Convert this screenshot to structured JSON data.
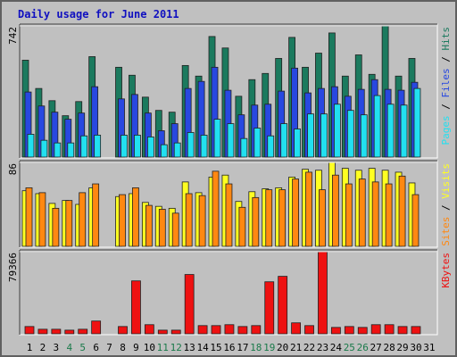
{
  "chart_data": [
    {
      "type": "bar",
      "title": "Daily usage for June 2011",
      "legend_separator": " / ",
      "ylim": [
        0,
        742
      ],
      "yticks": [
        742
      ],
      "series": [
        {
          "name": "Hits",
          "color": "#1b7a5e",
          "values": [
            548,
            388,
            319,
            234,
            314,
            568,
            0,
            508,
            463,
            339,
            264,
            254,
            518,
            458,
            682,
            617,
            344,
            438,
            473,
            558,
            677,
            508,
            588,
            702,
            458,
            578,
            468,
            742,
            458,
            558,
            0
          ]
        },
        {
          "name": "Files",
          "color": "#2848e0",
          "values": [
            368,
            289,
            254,
            214,
            249,
            398,
            0,
            329,
            354,
            249,
            149,
            189,
            388,
            428,
            508,
            378,
            239,
            294,
            299,
            373,
            503,
            363,
            388,
            398,
            344,
            383,
            438,
            383,
            378,
            423,
            0
          ]
        },
        {
          "name": "Pages",
          "color": "#22e0f0",
          "values": [
            129,
            95,
            80,
            80,
            120,
            124,
            0,
            124,
            124,
            114,
            70,
            80,
            139,
            124,
            214,
            189,
            105,
            164,
            120,
            189,
            159,
            244,
            244,
            299,
            264,
            239,
            348,
            299,
            294,
            388,
            0
          ]
        }
      ]
    },
    {
      "type": "bar",
      "ylim": [
        0,
        86
      ],
      "yticks": [
        86
      ],
      "series": [
        {
          "name": "Visits",
          "color": "#ffff22",
          "values": [
            57,
            54,
            44,
            47,
            43,
            60,
            0,
            51,
            54,
            45,
            41,
            39,
            66,
            55,
            71,
            73,
            46,
            56,
            59,
            60,
            71,
            79,
            78,
            86,
            80,
            78,
            80,
            78,
            76,
            65,
            0
          ]
        },
        {
          "name": "Sites",
          "color": "#ff8811",
          "values": [
            60,
            55,
            39,
            47,
            55,
            64,
            0,
            53,
            60,
            42,
            38,
            34,
            54,
            52,
            77,
            64,
            40,
            50,
            58,
            58,
            69,
            76,
            58,
            73,
            64,
            69,
            66,
            64,
            72,
            53,
            0
          ]
        }
      ]
    },
    {
      "type": "bar",
      "ylim": [
        0,
        79366
      ],
      "yticks": [
        79366
      ],
      "categories": [
        "1",
        "2",
        "3",
        "4",
        "5",
        "6",
        "7",
        "8",
        "9",
        "10",
        "11",
        "12",
        "13",
        "14",
        "15",
        "16",
        "17",
        "18",
        "19",
        "20",
        "21",
        "22",
        "23",
        "24",
        "25",
        "26",
        "27",
        "28",
        "29",
        "30",
        "31"
      ],
      "category_colors": [
        "#000000",
        "#000000",
        "#000000",
        "#1a7a4a",
        "#1a7a4a",
        "#000000",
        "#000000",
        "#000000",
        "#000000",
        "#000000",
        "#1a7a4a",
        "#1a7a4a",
        "#000000",
        "#000000",
        "#000000",
        "#000000",
        "#000000",
        "#1a7a4a",
        "#1a7a4a",
        "#000000",
        "#000000",
        "#000000",
        "#000000",
        "#000000",
        "#1a7a4a",
        "#1a7a4a",
        "#000000",
        "#000000",
        "#000000",
        "#000000",
        "#000000"
      ],
      "series": [
        {
          "name": "KBytes",
          "color": "#ee1111",
          "values": [
            7055,
            4409,
            4409,
            3527,
            4409,
            12346,
            0,
            7055,
            51147,
            8818,
            3527,
            3527,
            57320,
            7937,
            7937,
            8818,
            7055,
            7937,
            50265,
            55556,
            10582,
            7937,
            79366,
            6173,
            7055,
            6173,
            8818,
            8818,
            7055,
            7055,
            0
          ]
        }
      ]
    }
  ]
}
